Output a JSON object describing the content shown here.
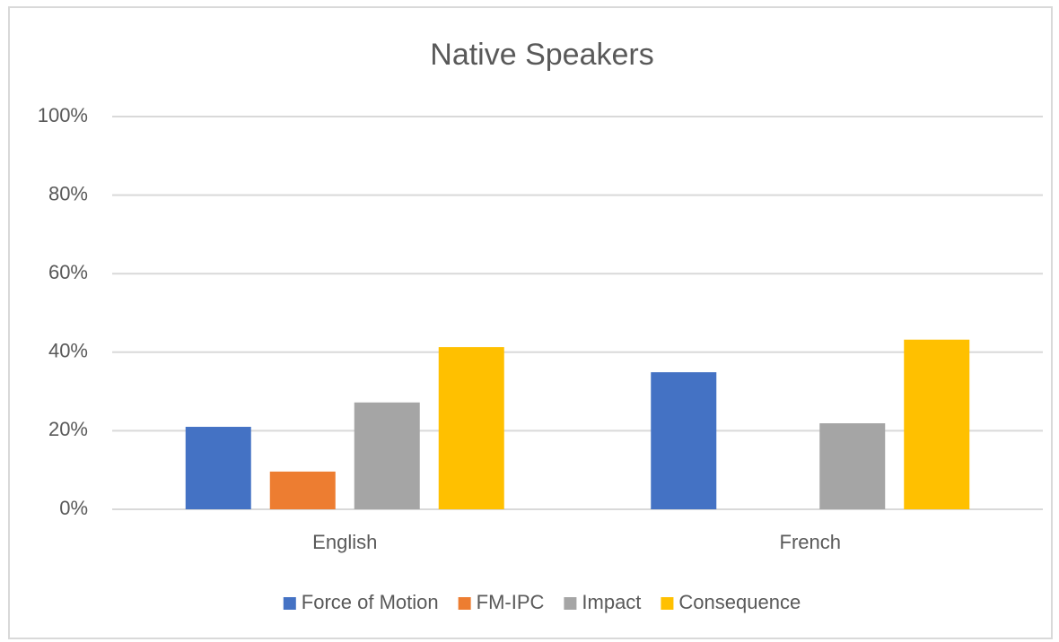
{
  "chart_data": {
    "type": "bar",
    "title": "Native Speakers",
    "categories": [
      "English",
      "French"
    ],
    "series": [
      {
        "name": "Force of Motion",
        "color": "#4472c4",
        "values": [
          21,
          34.9
        ]
      },
      {
        "name": "FM-IPC",
        "color": "#ed7d31",
        "values": [
          9.6,
          0
        ]
      },
      {
        "name": "Impact",
        "color": "#a5a5a5",
        "values": [
          27.2,
          21.9
        ]
      },
      {
        "name": "Consequence",
        "color": "#ffc000",
        "values": [
          41.3,
          43.2
        ]
      }
    ],
    "ylim": [
      0,
      100
    ],
    "yticks": [
      {
        "value": 0,
        "label": "0%"
      },
      {
        "value": 20,
        "label": "20%"
      },
      {
        "value": 40,
        "label": "40%"
      },
      {
        "value": 60,
        "label": "60%"
      },
      {
        "value": 80,
        "label": "80%"
      },
      {
        "value": 100,
        "label": "100%"
      }
    ],
    "grid": true,
    "legend": "bottom"
  }
}
